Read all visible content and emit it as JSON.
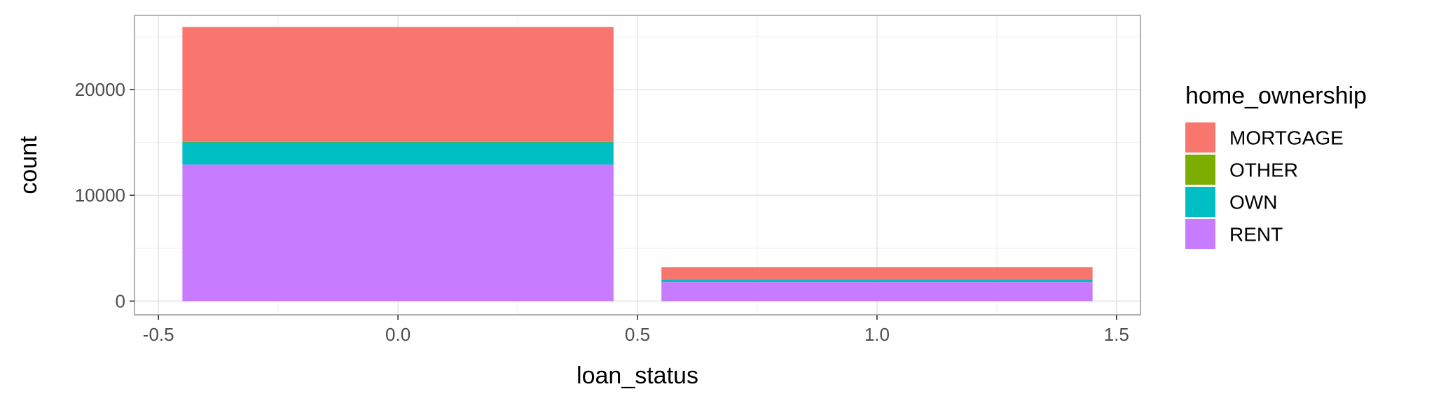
{
  "chart_data": {
    "type": "bar",
    "stacked": true,
    "xlabel": "loan_status",
    "ylabel": "count",
    "xlim": [
      -0.55,
      1.55
    ],
    "ylim": [
      -1300,
      27000
    ],
    "x_ticks": [
      -0.5,
      0.0,
      0.5,
      1.0,
      1.5
    ],
    "x_tick_labels": [
      "-0.5",
      "0.0",
      "0.5",
      "1.0",
      "1.5"
    ],
    "y_ticks": [
      0,
      10000,
      20000
    ],
    "y_tick_labels": [
      "0",
      "10000",
      "20000"
    ],
    "grid": true,
    "bar_width": 0.9,
    "legend": {
      "title": "home_ownership",
      "placement": "right",
      "entries": [
        {
          "label": "MORTGAGE",
          "color": "#F8766D"
        },
        {
          "label": "OTHER",
          "color": "#7CAE00"
        },
        {
          "label": "OWN",
          "color": "#00BFC4"
        },
        {
          "label": "RENT",
          "color": "#C77CFF"
        }
      ]
    },
    "x": [
      0,
      1
    ],
    "series": [
      {
        "name": "RENT",
        "color": "#C77CFF",
        "values": [
          12900,
          1800
        ]
      },
      {
        "name": "OWN",
        "color": "#00BFC4",
        "values": [
          2100,
          250
        ]
      },
      {
        "name": "OTHER",
        "color": "#7CAE00",
        "values": [
          50,
          20
        ]
      },
      {
        "name": "MORTGAGE",
        "color": "#F8766D",
        "values": [
          10850,
          1130
        ]
      }
    ]
  }
}
